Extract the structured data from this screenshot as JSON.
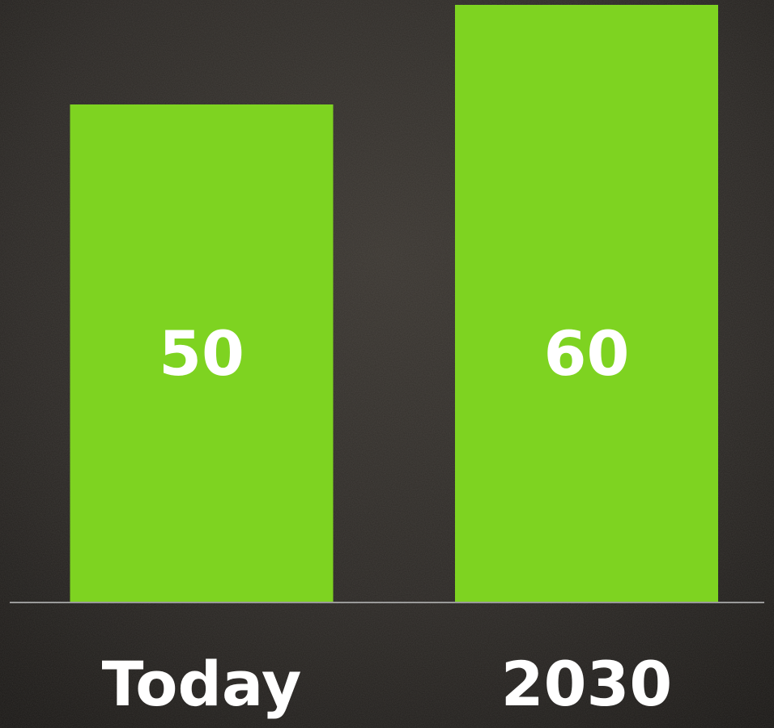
{
  "chart_data": {
    "type": "bar",
    "categories": [
      "Today",
      "2030"
    ],
    "values": [
      50,
      60
    ],
    "color": "#7ed321"
  }
}
